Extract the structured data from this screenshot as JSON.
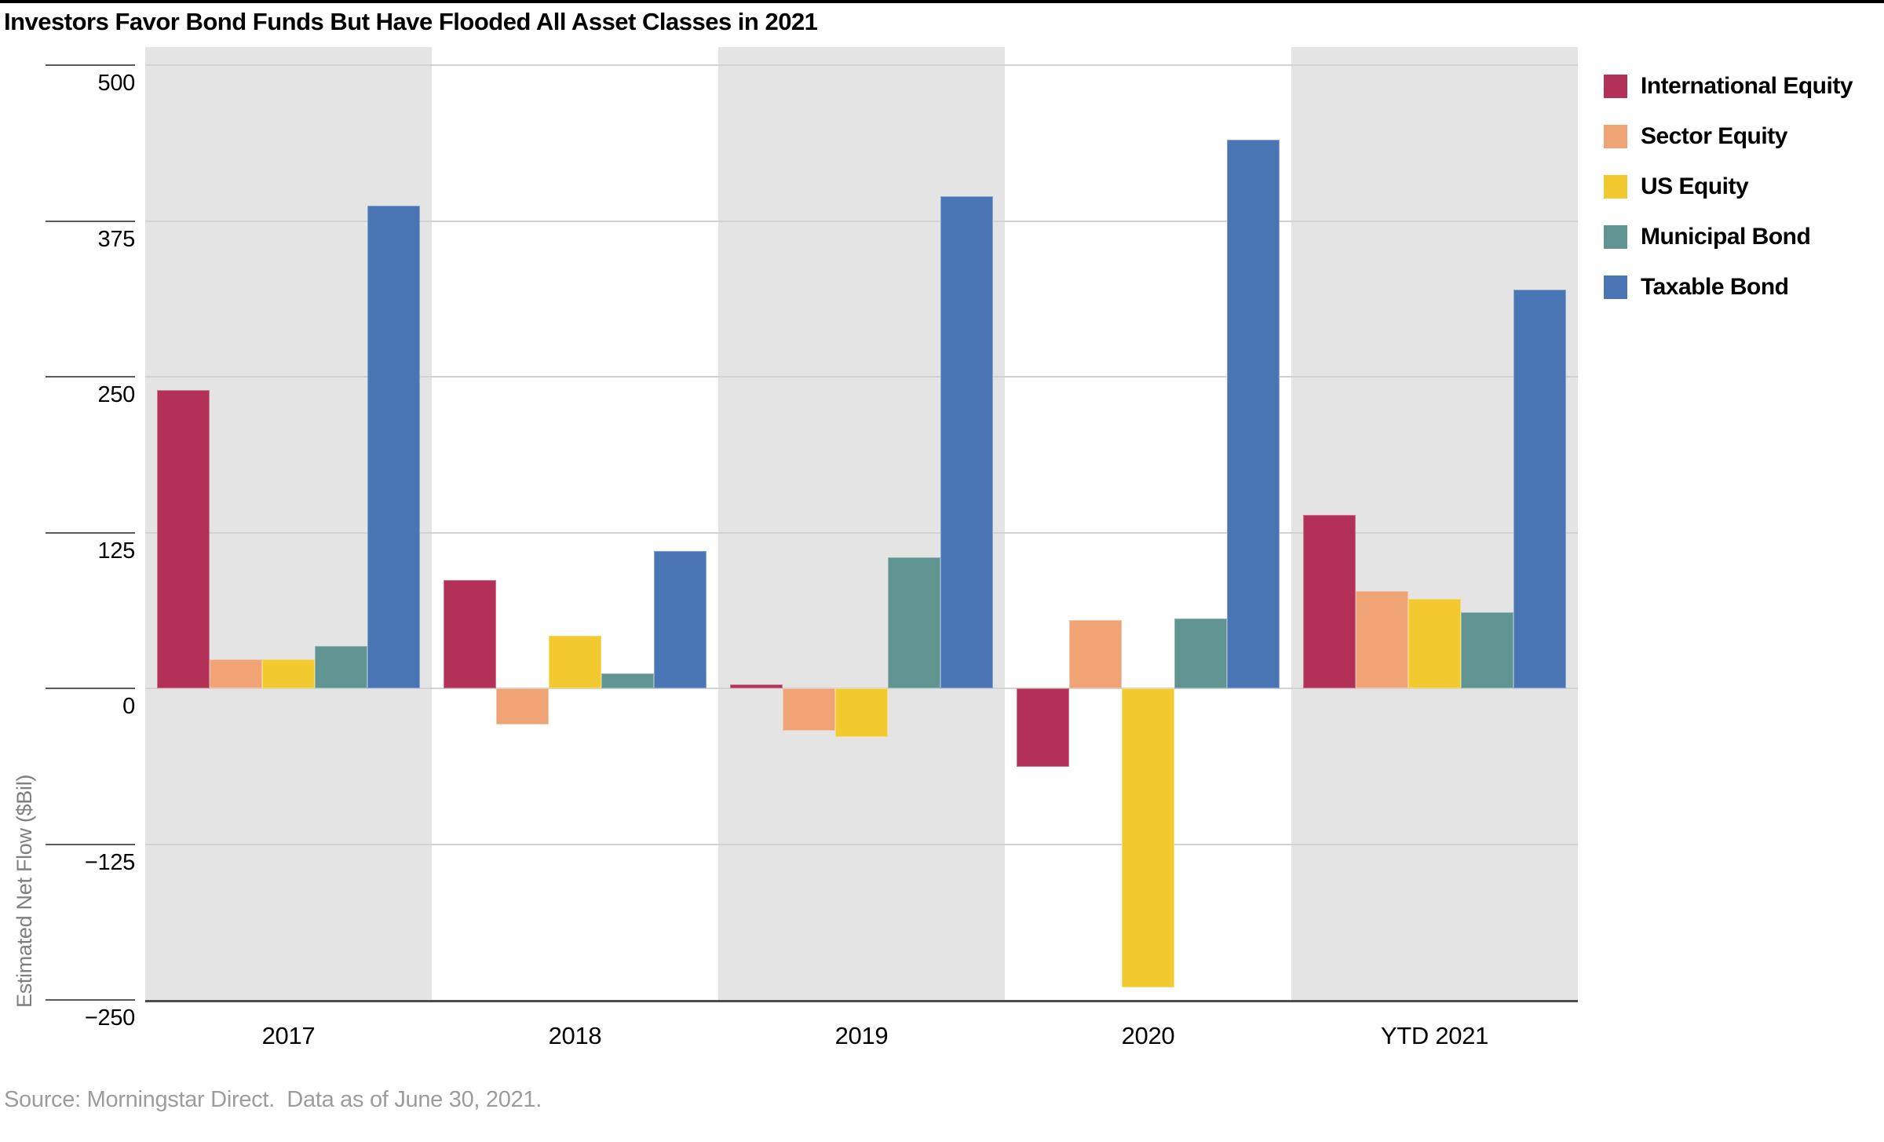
{
  "title": "Investors Favor Bond Funds But Have Flooded All Asset Classes in 2021",
  "source_note": "Source: Morningstar Direct.  Data as of June 30, 2021.",
  "chart_data": {
    "type": "bar",
    "title": "Investors Favor Bond Funds But Have Flooded All Asset Classes in 2021",
    "xlabel": "",
    "ylabel": "Estimated Net Flow ($Bil)",
    "categories": [
      "2017",
      "2018",
      "2019",
      "2020",
      "YTD 2021"
    ],
    "series": [
      {
        "name": "International Equity",
        "color": "#b33157",
        "values": [
          239,
          87,
          3,
          -63,
          139
        ]
      },
      {
        "name": "Sector Equity",
        "color": "#f0a476",
        "values": [
          23,
          -29,
          -34,
          55,
          78
        ]
      },
      {
        "name": "US Equity",
        "color": "#f2c92f",
        "values": [
          23,
          42,
          -39,
          -240,
          72
        ]
      },
      {
        "name": "Municipal Bond",
        "color": "#5f9490",
        "values": [
          34,
          12,
          105,
          56,
          61
        ]
      },
      {
        "name": "Taxable Bond",
        "color": "#4a75b4",
        "values": [
          387,
          110,
          395,
          440,
          320
        ]
      }
    ],
    "y_ticks": [
      500,
      375,
      250,
      125,
      0,
      -125,
      -250
    ],
    "ylim": [
      -250,
      515
    ],
    "grid": true,
    "legend_position": "top-right",
    "band_colors": [
      "#e4e4e4",
      "#ffffff"
    ],
    "gridline_color": "#d2d2d2",
    "axis_line_color": "#4d4d4d"
  }
}
